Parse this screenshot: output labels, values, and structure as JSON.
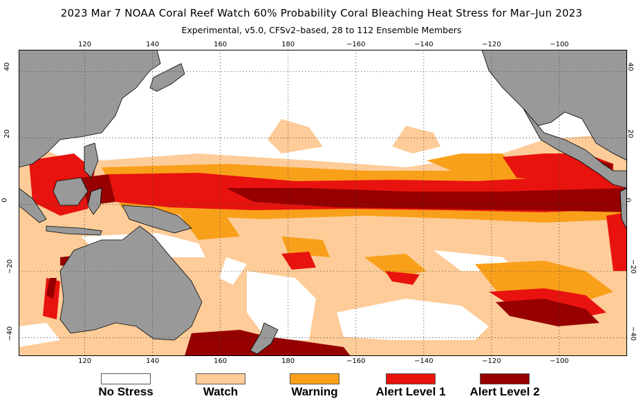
{
  "header": {
    "title": "2023 Mar 7 NOAA Coral Reef Watch 60% Probability Coral Bleaching Heat Stress for Mar–Jun 2023",
    "subtitle": "Experimental, v5.0, CFSv2–based, 28 to 112 Ensemble Members"
  },
  "axes": {
    "lon_ticks": [
      {
        "value": 120,
        "label": "120"
      },
      {
        "value": 140,
        "label": "140"
      },
      {
        "value": 160,
        "label": "160"
      },
      {
        "value": 180,
        "label": "180"
      },
      {
        "value": 200,
        "label": "−160"
      },
      {
        "value": 220,
        "label": "−140"
      },
      {
        "value": 240,
        "label": "−120"
      },
      {
        "value": 260,
        "label": "−100"
      }
    ],
    "lat_ticks": [
      {
        "value": 40,
        "label": "40"
      },
      {
        "value": 20,
        "label": "20"
      },
      {
        "value": 0,
        "label": "0"
      },
      {
        "value": -20,
        "label": "−20"
      },
      {
        "value": -40,
        "label": "−40"
      }
    ],
    "lon_range": [
      100.5,
      280
    ],
    "lat_range": [
      -45.5,
      46.5
    ]
  },
  "colors": {
    "ocean": "#ffffff",
    "land": "#999999",
    "watch": "#fdcc99",
    "warning": "#f9a01b",
    "alert1": "#e8130e",
    "alert2": "#960000",
    "grid": "#444444"
  },
  "legend": {
    "items": [
      {
        "label": "No Stress",
        "color": "#ffffff"
      },
      {
        "label": "Watch",
        "color": "#fdcc99"
      },
      {
        "label": "Warning",
        "color": "#f9a01b"
      },
      {
        "label": "Alert Level 1",
        "color": "#e8130e"
      },
      {
        "label": "Alert Level 2",
        "color": "#960000"
      }
    ]
  }
}
